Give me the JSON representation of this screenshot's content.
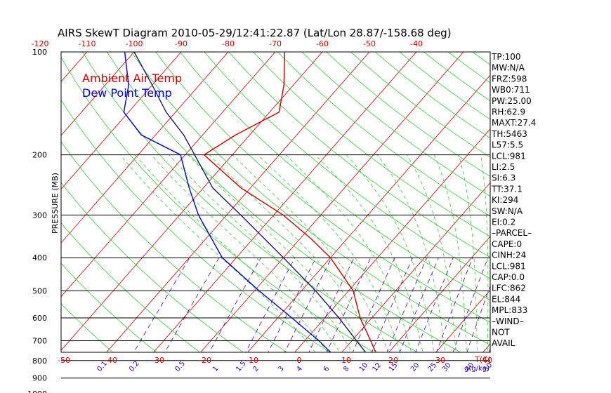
{
  "chart_data": {
    "type": "line",
    "title": "AIRS SkewT Diagram 2010-05-29/12:41:22.87 (Lat/Lon 28.87/-158.68 deg)",
    "ylabel": "PRESSURE (MB)",
    "xlabel_right": "T(C)",
    "mix_unit": "g(g/kg)",
    "x_scale": "skew-T",
    "y_scale": "log",
    "ylim": [
      1050,
      100
    ],
    "pressure_ticks": [
      100,
      200,
      300,
      400,
      500,
      600,
      700,
      800,
      900,
      1000
    ],
    "temp_ticks_bottom": [
      -50,
      -40,
      -30,
      -20,
      -10,
      0,
      10,
      20,
      30,
      40
    ],
    "temp_ticks_top": [
      -120,
      -110,
      -100,
      -90,
      -80,
      -70,
      -60,
      -50,
      -40
    ],
    "mixing_ratio_labels": [
      "0.1",
      "0.2",
      "0.5",
      "1",
      "1.5",
      "2",
      "3",
      "4",
      "6",
      "8",
      "10",
      "12",
      "15",
      "20",
      "25",
      "30",
      "40",
      "50"
    ],
    "legend": [
      {
        "name": "Ambient Air Temp",
        "color": "#cc0000"
      },
      {
        "name": "Dew Point Temp",
        "color": "#0000cc"
      }
    ],
    "series": [
      {
        "name": "Ambient Air Temp",
        "color": "#cc0000",
        "points": [
          {
            "p": 1000,
            "t": 20
          },
          {
            "p": 950,
            "t": 16
          },
          {
            "p": 900,
            "t": 14
          },
          {
            "p": 850,
            "t": 12
          },
          {
            "p": 800,
            "t": 9.5
          },
          {
            "p": 700,
            "t": 4
          },
          {
            "p": 600,
            "t": -2.5
          },
          {
            "p": 500,
            "t": -9
          },
          {
            "p": 400,
            "t": -20
          },
          {
            "p": 350,
            "t": -28
          },
          {
            "p": 300,
            "t": -38
          },
          {
            "p": 250,
            "t": -52
          },
          {
            "p": 200,
            "t": -66
          },
          {
            "p": 175,
            "t": -63
          },
          {
            "p": 150,
            "t": -58
          },
          {
            "p": 125,
            "t": -62
          },
          {
            "p": 100,
            "t": -68
          }
        ]
      },
      {
        "name": "Dew Point Temp",
        "color": "#0000cc",
        "points": [
          {
            "p": 1000,
            "t": 15
          },
          {
            "p": 950,
            "t": 13
          },
          {
            "p": 900,
            "t": 9
          },
          {
            "p": 850,
            "t": 5
          },
          {
            "p": 800,
            "t": 1
          },
          {
            "p": 700,
            "t": -7
          },
          {
            "p": 600,
            "t": -17
          },
          {
            "p": 500,
            "t": -29
          },
          {
            "p": 400,
            "t": -43
          },
          {
            "p": 300,
            "t": -56
          },
          {
            "p": 250,
            "t": -63
          },
          {
            "p": 200,
            "t": -71
          },
          {
            "p": 175,
            "t": -83
          },
          {
            "p": 150,
            "t": -91
          },
          {
            "p": 125,
            "t": -95
          },
          {
            "p": 100,
            "t": -102
          }
        ]
      },
      {
        "name": "Parcel",
        "color": "#1a1a66",
        "points": [
          {
            "p": 1000,
            "t": 20
          },
          {
            "p": 981,
            "t": 19
          },
          {
            "p": 900,
            "t": 14
          },
          {
            "p": 800,
            "t": 8
          },
          {
            "p": 700,
            "t": 1
          },
          {
            "p": 600,
            "t": -7
          },
          {
            "p": 500,
            "t": -17
          },
          {
            "p": 400,
            "t": -30
          },
          {
            "p": 300,
            "t": -47
          },
          {
            "p": 250,
            "t": -58
          },
          {
            "p": 200,
            "t": -68
          },
          {
            "p": 175,
            "t": -74
          },
          {
            "p": 150,
            "t": -82
          },
          {
            "p": 125,
            "t": -90
          },
          {
            "p": 100,
            "t": -100
          }
        ]
      }
    ],
    "indices": [
      "TP:100",
      "MW:N/A",
      "FRZ:598",
      "WB0:711",
      "PW:25.00",
      "RH:62.9",
      "MAXT:27.4",
      "TH:5463",
      "L57:5.5",
      "LCL:981",
      "LI:2.5",
      "SI:6.3",
      "TT:37.1",
      "KI:294",
      "SW:N/A",
      "EI:0.2",
      "–PARCEL–",
      "CAPE:0",
      "CINH:24",
      "LCL:981",
      "CAP:0.0",
      "LFC:862",
      "EL:844",
      "MPL:833",
      "–WIND–",
      "NOT",
      "AVAIL"
    ],
    "colors": {
      "isotherm": "#cc0000",
      "dry_adiabat": "#33cc33",
      "moist_adiabat": "#33cc33",
      "mixing_ratio": "#5500aa",
      "isobar": "#000000"
    }
  }
}
